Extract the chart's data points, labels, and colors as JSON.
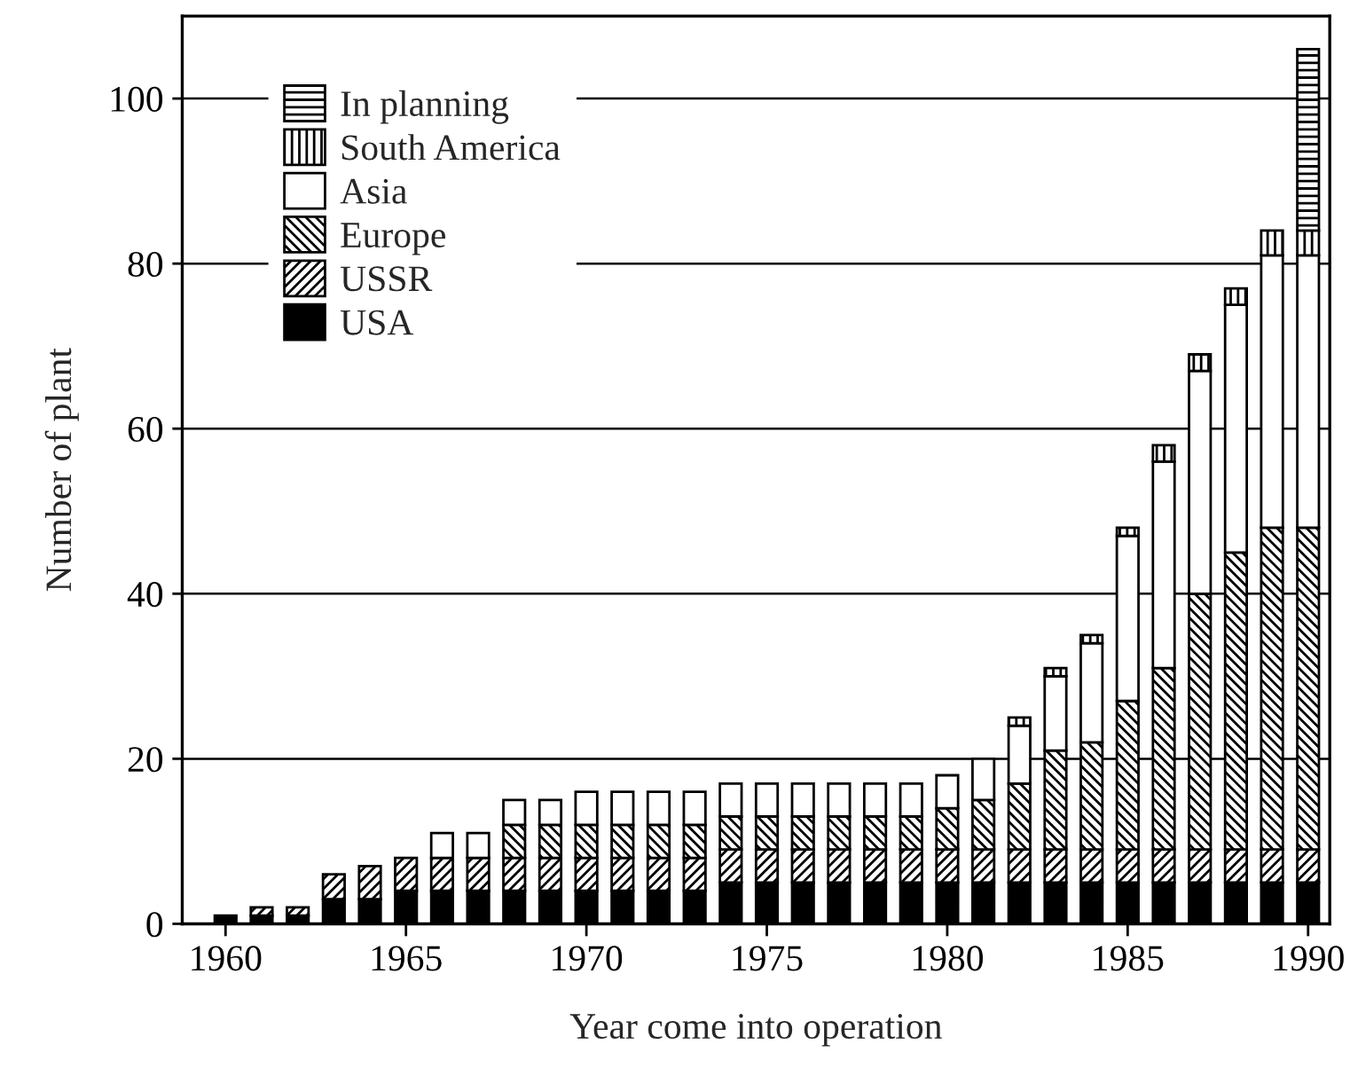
{
  "chart_data": {
    "type": "bar",
    "stacked": true,
    "xlabel": "Year come into operation",
    "ylabel": "Number of plant",
    "x": [
      1960,
      1961,
      1962,
      1963,
      1964,
      1965,
      1966,
      1967,
      1968,
      1969,
      1970,
      1971,
      1972,
      1973,
      1974,
      1975,
      1976,
      1977,
      1978,
      1979,
      1980,
      1981,
      1982,
      1983,
      1984,
      1985,
      1986,
      1987,
      1988,
      1989,
      1990
    ],
    "series": [
      {
        "name": "USA",
        "color": "#000000",
        "values": [
          1,
          1,
          1,
          3,
          3,
          4,
          4,
          4,
          4,
          4,
          4,
          4,
          4,
          4,
          5,
          5,
          5,
          5,
          5,
          5,
          5,
          5,
          5,
          5,
          5,
          5,
          5,
          5,
          5,
          5,
          5
        ]
      },
      {
        "name": "USSR",
        "color": "#000000",
        "values": [
          0,
          1,
          1,
          3,
          4,
          4,
          4,
          4,
          4,
          4,
          4,
          4,
          4,
          4,
          4,
          4,
          4,
          4,
          4,
          4,
          4,
          4,
          4,
          4,
          4,
          4,
          4,
          4,
          4,
          4,
          4
        ]
      },
      {
        "name": "Europe",
        "color": "#000000",
        "values": [
          0,
          0,
          0,
          0,
          0,
          0,
          0,
          0,
          4,
          4,
          4,
          4,
          4,
          4,
          4,
          4,
          4,
          4,
          4,
          4,
          5,
          6,
          8,
          12,
          13,
          18,
          22,
          31,
          36,
          39,
          39
        ]
      },
      {
        "name": "Asia",
        "color": "#ffffff",
        "values": [
          0,
          0,
          0,
          0,
          0,
          0,
          3,
          3,
          3,
          3,
          4,
          4,
          4,
          4,
          4,
          4,
          4,
          4,
          4,
          4,
          4,
          5,
          7,
          9,
          12,
          20,
          25,
          27,
          30,
          33,
          33
        ]
      },
      {
        "name": "South America",
        "color": "#000000",
        "values": [
          0,
          0,
          0,
          0,
          0,
          0,
          0,
          0,
          0,
          0,
          0,
          0,
          0,
          0,
          0,
          0,
          0,
          0,
          0,
          0,
          0,
          0,
          1,
          1,
          1,
          1,
          2,
          2,
          2,
          3,
          3
        ]
      },
      {
        "name": "In planning",
        "color": "#000000",
        "values": [
          0,
          0,
          0,
          0,
          0,
          0,
          0,
          0,
          0,
          0,
          0,
          0,
          0,
          0,
          0,
          0,
          0,
          0,
          0,
          0,
          0,
          0,
          0,
          0,
          0,
          0,
          0,
          0,
          0,
          0,
          22
        ]
      }
    ],
    "xlim": [
      1958.8,
      1990.6
    ],
    "xticks": [
      1960,
      1965,
      1970,
      1975,
      1980,
      1985,
      1990
    ],
    "ylim": [
      0,
      110
    ],
    "yticks": [
      0,
      20,
      40,
      60,
      80,
      100
    ],
    "grid": "y",
    "legend": "top left"
  }
}
